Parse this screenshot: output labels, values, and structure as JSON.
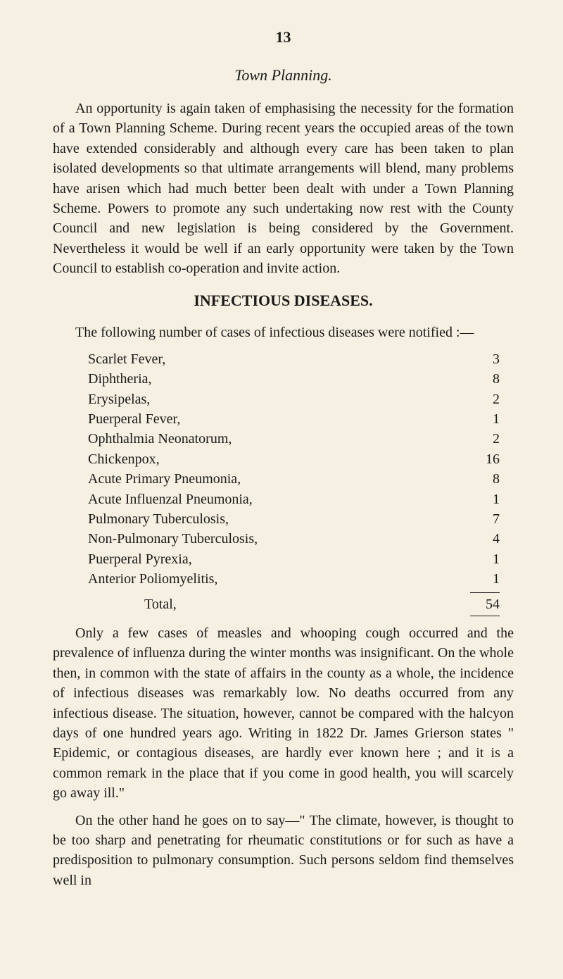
{
  "page_number": "13",
  "section1": {
    "title": "Town Planning.",
    "para": "An opportunity is again taken of emphasising the necessity for the formation of a Town Planning Scheme. During recent years the occupied areas of the town have extended considerably and although every care has been taken to plan isolated developments so that ultimate arrangements will blend, many problems have arisen which had much better been dealt with under a Town Planning Scheme. Powers to promote any such undertaking now rest with the County Council and new legislation is being considered by the Government. Nevertheless it would be well if an early opportunity were taken by the Town Council to establish co-operation and invite action."
  },
  "section2": {
    "title": "INFECTIOUS DISEASES.",
    "intro": "The following number of cases of infectious diseases were notified :—",
    "diseases": [
      {
        "name": "Scarlet Fever,",
        "value": "3"
      },
      {
        "name": "Diphtheria,",
        "value": "8"
      },
      {
        "name": "Erysipelas,",
        "value": "2"
      },
      {
        "name": "Puerperal Fever,",
        "value": "1"
      },
      {
        "name": "Ophthalmia Neonatorum,",
        "value": "2"
      },
      {
        "name": "Chickenpox,",
        "value": "16"
      },
      {
        "name": "Acute Primary Pneumonia,",
        "value": "8"
      },
      {
        "name": "Acute Influenzal Pneumonia,",
        "value": "1"
      },
      {
        "name": "Pulmonary Tuberculosis,",
        "value": "7"
      },
      {
        "name": "Non-Pulmonary Tuberculosis,",
        "value": "4"
      },
      {
        "name": "Puerperal Pyrexia,",
        "value": "1"
      },
      {
        "name": "Anterior Poliomyelitis,",
        "value": "1"
      }
    ],
    "total_label": "Total,",
    "total_value": "54",
    "para2": "Only a few cases of measles and whooping cough occurred and the prevalence of influenza during the winter months was insignificant. On the whole then, in common with the state of affairs in the county as a whole, the incidence of infectious diseases was remarkably low. No deaths occurred from any infectious disease. The situation, however, cannot be compared with the halcyon days of one hundred years ago. Writing in 1822 Dr. James Grierson states \" Epidemic, or contagious diseases, are hardly ever known here ; and it is a common remark in the place that if you come in good health, you will scarcely go away ill.\"",
    "para3": "On the other hand he goes on to say—\" The climate, however, is thought to be too sharp and penetrating for rheumatic constitutions or for such as have a predisposition to pulmonary consumption. Such persons seldom find themselves well in"
  },
  "styling": {
    "background_color": "#f5f0e1",
    "text_color": "#1a1a1a",
    "body_font_size": 20,
    "title_font_size": 22,
    "line_height": 1.42
  }
}
